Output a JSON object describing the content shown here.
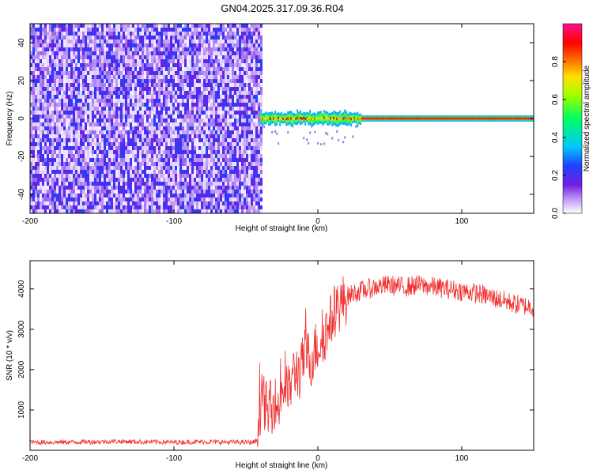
{
  "title": "GN04.2025.317.09.36.R04",
  "colors": {
    "snr_line": "#f03030",
    "spectrogram_noise": "#7a2cf0",
    "background": "#ffffff",
    "frame": "#000000"
  },
  "chart_data": [
    {
      "type": "heatmap",
      "name": "spectrogram",
      "xlabel": "Height of straight line (km)",
      "ylabel": "Frequency (Hz)",
      "xlim": [
        -200,
        150
      ],
      "ylim": [
        -50,
        50
      ],
      "x_ticks": [
        -200,
        -100,
        0,
        100
      ],
      "y_ticks": [
        -40,
        -20,
        0,
        20,
        40
      ],
      "colorbar": {
        "label": "Normalized spectral amplitude",
        "range": [
          0,
          1
        ],
        "ticks": [
          "0.0",
          "0.2",
          "0.4",
          "0.6",
          "0.8"
        ],
        "colormap": "rainbow (white-purple-blue-cyan-green-yellow-red-magenta)"
      },
      "regions": [
        {
          "x": [
            -200,
            -40
          ],
          "frequency": [
            -50,
            50
          ],
          "amplitude_range": [
            0.0,
            0.15
          ],
          "description": "broadband noise"
        },
        {
          "x": [
            -40,
            150
          ],
          "frequency_center": 0,
          "half_width_hz": 2,
          "amplitude_range": [
            0.3,
            1.0
          ],
          "description": "narrow signal near 0 Hz"
        }
      ]
    },
    {
      "type": "line",
      "name": "snr",
      "xlabel": "Height of straight line (km)",
      "ylabel": "SNR (10 * v/v)",
      "xlim": [
        -200,
        150
      ],
      "ylim": [
        0,
        4700
      ],
      "x_ticks": [
        -200,
        -100,
        0,
        100
      ],
      "y_ticks": [
        1000,
        2000,
        3000,
        4000
      ],
      "series": [
        {
          "x": [
            -200,
            -180,
            -160,
            -140,
            -120,
            -100,
            -80,
            -60,
            -45,
            -42,
            -40,
            -38,
            -35,
            -32,
            -30,
            -28,
            -25,
            -22,
            -20,
            -18,
            -15,
            -12,
            -10,
            -8,
            -5,
            -2,
            0,
            3,
            5,
            8,
            10,
            12,
            15,
            18,
            20,
            25,
            30,
            35,
            40,
            50,
            60,
            70,
            80,
            90,
            100,
            110,
            120,
            130,
            140,
            150
          ],
          "y": [
            200,
            200,
            210,
            220,
            210,
            200,
            210,
            200,
            200,
            250,
            1100,
            1300,
            900,
            1100,
            1200,
            1000,
            1500,
            1600,
            1400,
            1800,
            2000,
            1900,
            2300,
            2400,
            2200,
            2500,
            2600,
            2800,
            2900,
            3100,
            3300,
            3500,
            3600,
            3700,
            3800,
            3900,
            3950,
            4000,
            4050,
            4100,
            4050,
            4100,
            4050,
            4000,
            3950,
            3900,
            3800,
            3700,
            3600,
            3550
          ]
        }
      ]
    }
  ]
}
